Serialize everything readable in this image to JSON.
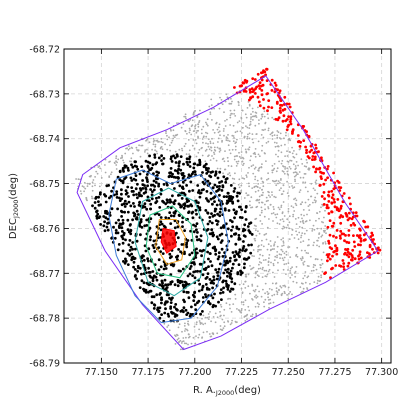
{
  "chart_data": {
    "type": "scatter",
    "title": "",
    "xlabel": {
      "main": "R. A.",
      "sub": "J2000",
      "unit": "(deg)"
    },
    "ylabel": {
      "main": "DEC",
      "sub": "J2000",
      "unit": "(deg)"
    },
    "xlim": [
      77.13,
      77.305
    ],
    "ylim": [
      -68.79,
      -68.72
    ],
    "x_ticks": [
      77.15,
      77.175,
      77.2,
      77.225,
      77.25,
      77.275,
      77.3
    ],
    "x_tick_labels": [
      "77.150",
      "77.175",
      "77.200",
      "77.225",
      "77.250",
      "77.275",
      "77.300"
    ],
    "y_ticks": [
      -68.72,
      -68.73,
      -68.74,
      -68.75,
      -68.76,
      -68.77,
      -68.78,
      -68.79
    ],
    "y_tick_labels": [
      "-68.72",
      "-68.73",
      "-68.74",
      "-68.75",
      "-68.76",
      "-68.77",
      "-68.78",
      "-68.79"
    ],
    "grid": true,
    "grid_style": "dashed",
    "cluster_center": [
      77.186,
      -68.762
    ],
    "series": [
      {
        "color": "#000000",
        "region": "disk of radius 0.045 deg around the center, within the field"
      },
      {
        "color": "#aaaaaa",
        "region": "annulus 0.045-0.085 deg around the center, within the field"
      },
      {
        "color": "#ff0000",
        "region": "beyond 0.085 deg from the center, within the field"
      }
    ],
    "field_polygon": [
      [
        77.134,
        -68.749
      ],
      [
        77.238,
        -68.724
      ],
      [
        77.301,
        -68.765
      ],
      [
        77.193,
        -68.788
      ]
    ],
    "masked_hole": {
      "center": [
        77.156,
        -68.767
      ],
      "radius": 0.003
    },
    "contours": [
      {
        "color": "#7b2cf5",
        "region": "outer field contour plus patches",
        "ring": [
          [
            77.14,
            -68.748
          ],
          [
            77.16,
            -68.742
          ],
          [
            77.185,
            -68.738
          ],
          [
            77.21,
            -68.733
          ],
          [
            77.238,
            -68.726
          ],
          [
            77.258,
            -68.738
          ],
          [
            77.28,
            -68.754
          ],
          [
            77.298,
            -68.765
          ],
          [
            77.27,
            -68.772
          ],
          [
            77.24,
            -68.778
          ],
          [
            77.214,
            -68.784
          ],
          [
            77.194,
            -68.787
          ],
          [
            77.172,
            -68.777
          ],
          [
            77.152,
            -68.765
          ],
          [
            77.137,
            -68.752
          ]
        ]
      },
      {
        "color": "#3d7bd6",
        "ring": [
          [
            77.158,
            -68.749
          ],
          [
            77.172,
            -68.747
          ],
          [
            77.187,
            -68.75
          ],
          [
            77.203,
            -68.748
          ],
          [
            77.214,
            -68.754
          ],
          [
            77.218,
            -68.763
          ],
          [
            77.212,
            -68.773
          ],
          [
            77.198,
            -68.78
          ],
          [
            77.182,
            -68.781
          ],
          [
            77.168,
            -68.775
          ],
          [
            77.158,
            -68.766
          ],
          [
            77.154,
            -68.757
          ]
        ]
      },
      {
        "color": "#2aa9a3",
        "ring": [
          [
            77.172,
            -68.754
          ],
          [
            77.186,
            -68.751
          ],
          [
            77.2,
            -68.754
          ],
          [
            77.207,
            -68.762
          ],
          [
            77.203,
            -68.771
          ],
          [
            77.189,
            -68.775
          ],
          [
            77.175,
            -68.772
          ],
          [
            77.168,
            -68.763
          ]
        ]
      },
      {
        "color": "#26c281",
        "ring": [
          [
            77.176,
            -68.757
          ],
          [
            77.188,
            -68.755
          ],
          [
            77.198,
            -68.759
          ],
          [
            77.2,
            -68.766
          ],
          [
            77.192,
            -68.771
          ],
          [
            77.18,
            -68.77
          ],
          [
            77.174,
            -68.764
          ]
        ]
      },
      {
        "color": "#f0a020",
        "ring": [
          [
            77.181,
            -68.758
          ],
          [
            77.19,
            -68.758
          ],
          [
            77.195,
            -68.762
          ],
          [
            77.193,
            -68.767
          ],
          [
            77.185,
            -68.768
          ],
          [
            77.179,
            -68.764
          ]
        ]
      },
      {
        "color": "#ff0000",
        "ring": [
          [
            77.183,
            -68.76
          ],
          [
            77.189,
            -68.7605
          ],
          [
            77.19,
            -68.764
          ],
          [
            77.185,
            -68.7655
          ],
          [
            77.182,
            -68.763
          ]
        ]
      }
    ]
  }
}
